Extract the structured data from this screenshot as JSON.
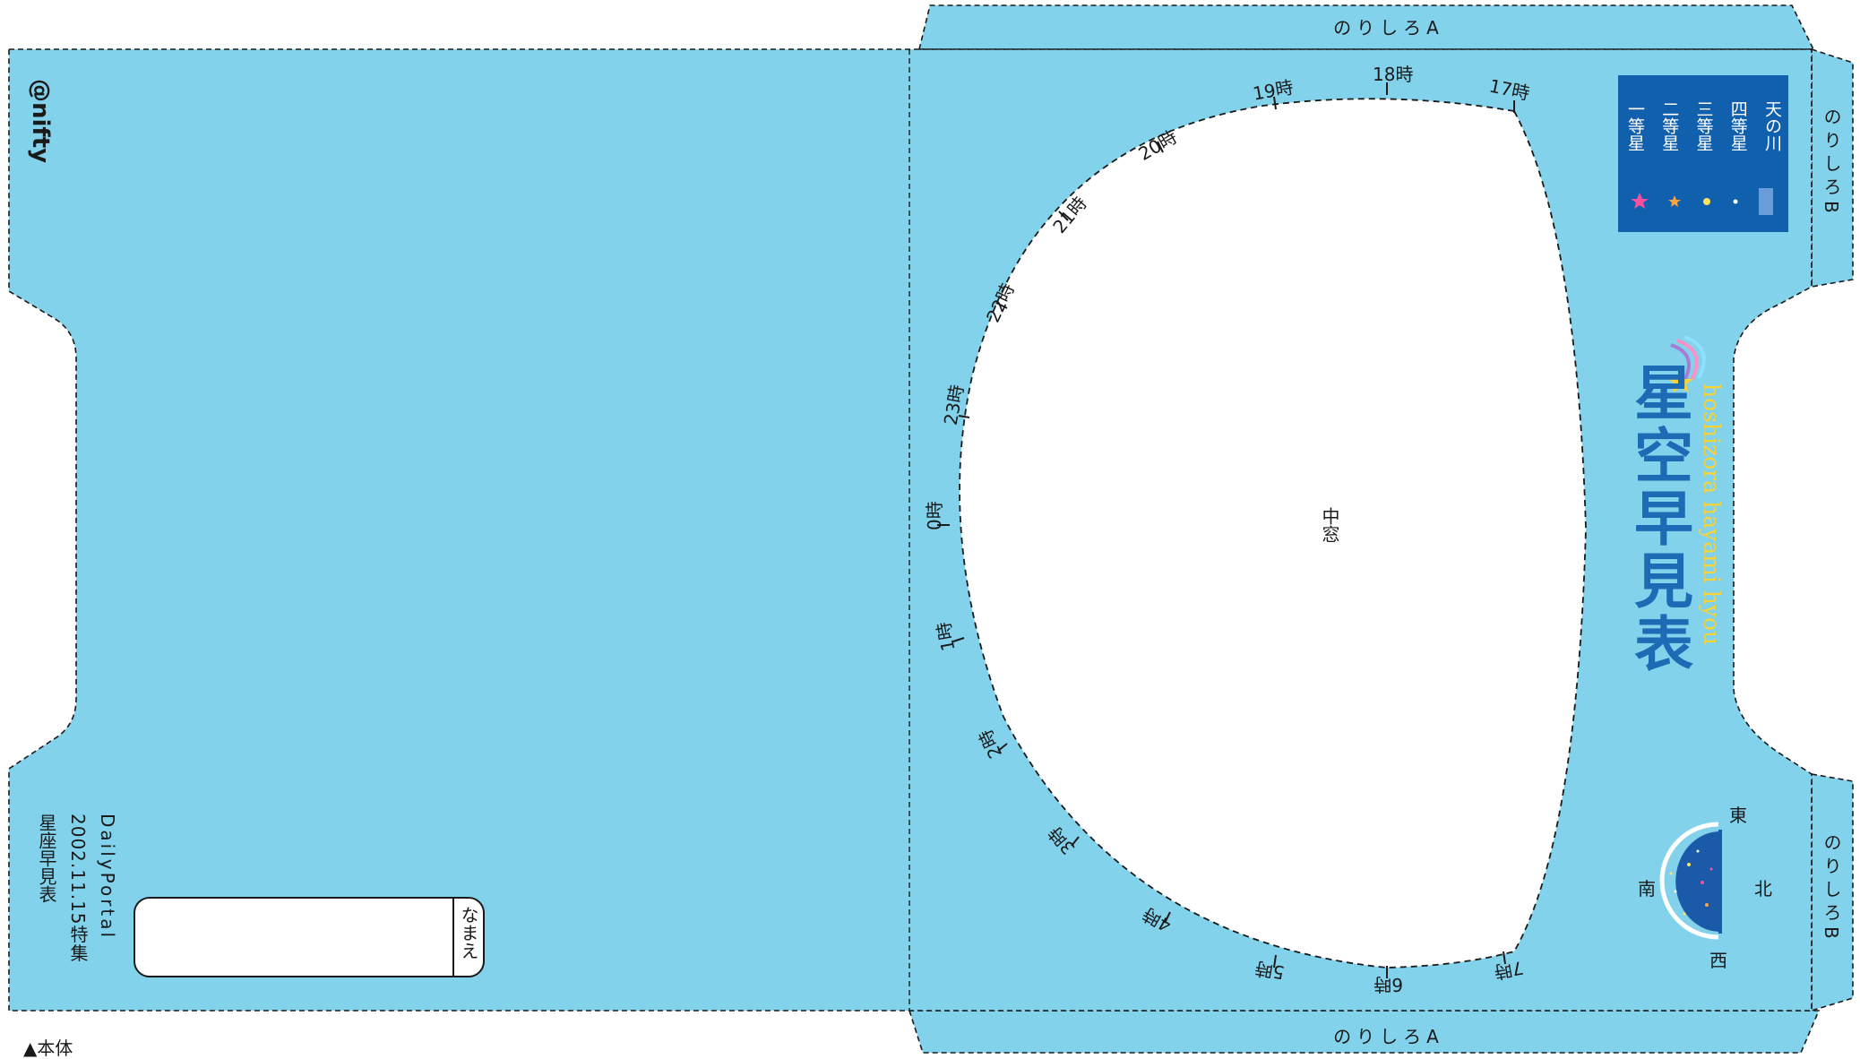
{
  "colors": {
    "sheet_fill": "#82d2ec",
    "cut_line": "#1a1a1a",
    "window": "#ffffff",
    "legend_bg": "#1060ad",
    "title_blue": "#1d6bb5",
    "subtitle_yellow": "#f6d33a",
    "globe_blue": "#1b5aa8"
  },
  "brand": {
    "logo": "@nifty"
  },
  "glue_tabs": {
    "top": "のりしろA",
    "bottom": "のりしろA",
    "right_upper": "のりしろB",
    "right_lower": "のりしろB"
  },
  "center_label": "中窓",
  "hour_marks": [
    "17時",
    "18時",
    "19時",
    "20時",
    "21時",
    "22時",
    "23時",
    "0時",
    "1時",
    "2時",
    "3時",
    "4時",
    "5時",
    "6時",
    "7時"
  ],
  "legend": {
    "items": [
      {
        "label": "一等星",
        "marker": "star-pink-icon",
        "color": "#ff4fa0"
      },
      {
        "label": "二等星",
        "marker": "star-orange-icon",
        "color": "#ffa43a"
      },
      {
        "label": "三等星",
        "marker": "dot-yellow-icon",
        "color": "#ffe45a"
      },
      {
        "label": "四等星",
        "marker": "dot-white-icon",
        "color": "#ffffff"
      },
      {
        "label": "天の川",
        "marker": "milky-way-swatch-icon",
        "color": "#6a9dd8"
      }
    ]
  },
  "title": {
    "main": "星空早見表",
    "romaji": "hoshizora hayami hyou"
  },
  "compass": {
    "east": "東",
    "west": "西",
    "south": "南",
    "north": "北"
  },
  "credit": {
    "line1": "DailyPortal",
    "line2": "2002.11.15特集",
    "line3": "星座早見表"
  },
  "name_box": {
    "label": "なまえ",
    "value": ""
  },
  "caption": "▲本体"
}
